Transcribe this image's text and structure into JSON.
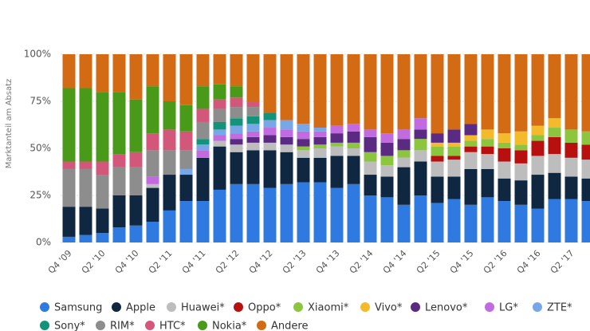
{
  "chart_data": {
    "type": "stacked_bar",
    "y_label": "Marktanteil am Absatz",
    "categories": [
      "Q4 '09",
      null,
      "Q2 '10",
      null,
      "Q4 '10",
      null,
      "Q2 '11",
      null,
      "Q4 '11",
      null,
      "Q2 '12",
      null,
      "Q4 '12",
      null,
      "Q2 '13",
      null,
      "Q4 '13",
      null,
      "Q2 '14",
      null,
      "Q4 '14",
      null,
      "Q2 '15",
      null,
      "Q4 '15",
      null,
      "Q2 '16",
      null,
      "Q4 '16",
      null,
      "Q2 '17",
      null
    ],
    "ylim": [
      0,
      100
    ],
    "yticks": [
      {
        "value": 0,
        "label": "0%"
      },
      {
        "value": 25,
        "label": "25%"
      },
      {
        "value": 50,
        "label": "50%"
      },
      {
        "value": 75,
        "label": "75%"
      },
      {
        "value": 100,
        "label": "100%"
      }
    ],
    "grid": true,
    "series": [
      {
        "name": "Samsung",
        "color": "#2f7ae0",
        "values": [
          3,
          4,
          5,
          8,
          9,
          11,
          17,
          22,
          22,
          28,
          31,
          31,
          29,
          31,
          32,
          32,
          29,
          31,
          25,
          24,
          20,
          25,
          21,
          23,
          20,
          24,
          22,
          20,
          18,
          23,
          23,
          22
        ]
      },
      {
        "name": "Apple",
        "color": "#0f2740",
        "values": [
          16,
          15,
          13,
          17,
          16,
          18,
          19,
          14,
          23,
          23,
          17,
          18,
          20,
          17,
          13,
          13,
          17,
          15,
          11,
          11,
          20,
          18,
          14,
          12,
          19,
          15,
          12,
          13,
          18,
          14,
          12,
          12
        ]
      },
      {
        "name": "Huawei*",
        "color": "#bdbdbd",
        "values": [
          0,
          0,
          0,
          0,
          0,
          2,
          0,
          0,
          0,
          3,
          4,
          4,
          4,
          4,
          4,
          5,
          5,
          4,
          7,
          6,
          5,
          6,
          8,
          9,
          9,
          8,
          9,
          9,
          10,
          10,
          10,
          10
        ]
      },
      {
        "name": "Oppo*",
        "color": "#b80f0f",
        "values": [
          0,
          0,
          0,
          0,
          0,
          0,
          0,
          0,
          0,
          0,
          0,
          0,
          0,
          0,
          0,
          0,
          0,
          0,
          0,
          0,
          0,
          0,
          3,
          2,
          3,
          4,
          7,
          7,
          8,
          9,
          8,
          8
        ]
      },
      {
        "name": "Xiaomi*",
        "color": "#8cc63f",
        "values": [
          0,
          0,
          0,
          0,
          0,
          0,
          0,
          0,
          0,
          0,
          0,
          0,
          0,
          0,
          2,
          2,
          2,
          3,
          5,
          5,
          4,
          6,
          5,
          5,
          3,
          4,
          3,
          3,
          3,
          5,
          7,
          7
        ]
      },
      {
        "name": "Vivo*",
        "color": "#f3bb2b",
        "values": [
          0,
          0,
          0,
          0,
          0,
          0,
          0,
          0,
          0,
          0,
          0,
          0,
          0,
          0,
          0,
          0,
          0,
          0,
          0,
          0,
          0,
          0,
          2,
          2,
          3,
          5,
          5,
          7,
          5,
          5,
          0,
          0
        ]
      },
      {
        "name": "Lenovo*",
        "color": "#5b2a83",
        "values": [
          0,
          0,
          0,
          0,
          0,
          0,
          0,
          0,
          0,
          0,
          3,
          3,
          4,
          4,
          4,
          4,
          5,
          6,
          8,
          7,
          6,
          5,
          5,
          7,
          6,
          0,
          0,
          0,
          0,
          0,
          0,
          0
        ]
      },
      {
        "name": "LG*",
        "color": "#c26be0",
        "values": [
          0,
          0,
          0,
          0,
          0,
          4,
          0,
          0,
          4,
          3,
          3,
          3,
          4,
          4,
          4,
          3,
          4,
          4,
          4,
          5,
          5,
          6,
          0,
          0,
          0,
          0,
          0,
          0,
          0,
          0,
          0,
          0
        ]
      },
      {
        "name": "ZTE*",
        "color": "#79a6e6",
        "values": [
          0,
          0,
          0,
          0,
          0,
          0,
          0,
          3,
          3,
          3,
          4,
          4,
          4,
          5,
          4,
          2,
          0,
          0,
          0,
          0,
          0,
          0,
          0,
          0,
          0,
          0,
          0,
          0,
          0,
          0,
          0,
          0
        ]
      },
      {
        "name": "Sony*",
        "color": "#13947a",
        "values": [
          0,
          0,
          0,
          0,
          0,
          0,
          0,
          0,
          3,
          4,
          4,
          4,
          4,
          0,
          0,
          0,
          0,
          0,
          0,
          0,
          0,
          0,
          0,
          0,
          0,
          0,
          0,
          0,
          0,
          0,
          0,
          0
        ]
      },
      {
        "name": "RIM*",
        "color": "#8d8d8d",
        "values": [
          20,
          20,
          18,
          15,
          15,
          14,
          13,
          10,
          9,
          7,
          6,
          5,
          0,
          0,
          0,
          0,
          0,
          0,
          0,
          0,
          0,
          0,
          0,
          0,
          0,
          0,
          0,
          0,
          0,
          0,
          0,
          0
        ]
      },
      {
        "name": "HTC*",
        "color": "#d3577b",
        "values": [
          4,
          4,
          7,
          7,
          8,
          9,
          11,
          10,
          7,
          5,
          5,
          3,
          0,
          0,
          0,
          0,
          0,
          0,
          0,
          0,
          0,
          0,
          0,
          0,
          0,
          0,
          0,
          0,
          0,
          0,
          0,
          0
        ]
      },
      {
        "name": "Nokia*",
        "color": "#4a9a19",
        "values": [
          39,
          39,
          37,
          33,
          28,
          25,
          15,
          14,
          12,
          8,
          6,
          0,
          0,
          0,
          0,
          0,
          0,
          0,
          0,
          0,
          0,
          0,
          0,
          0,
          0,
          0,
          0,
          0,
          0,
          0,
          0,
          0
        ]
      },
      {
        "name": "Andere",
        "color": "#d36a14",
        "values": [
          18,
          18,
          20,
          20,
          24,
          17,
          25,
          27,
          17,
          16,
          17,
          25,
          31,
          35,
          37,
          39,
          38,
          37,
          40,
          42,
          40,
          34,
          42,
          40,
          37,
          40,
          42,
          41,
          38,
          34,
          40,
          41
        ]
      }
    ]
  }
}
